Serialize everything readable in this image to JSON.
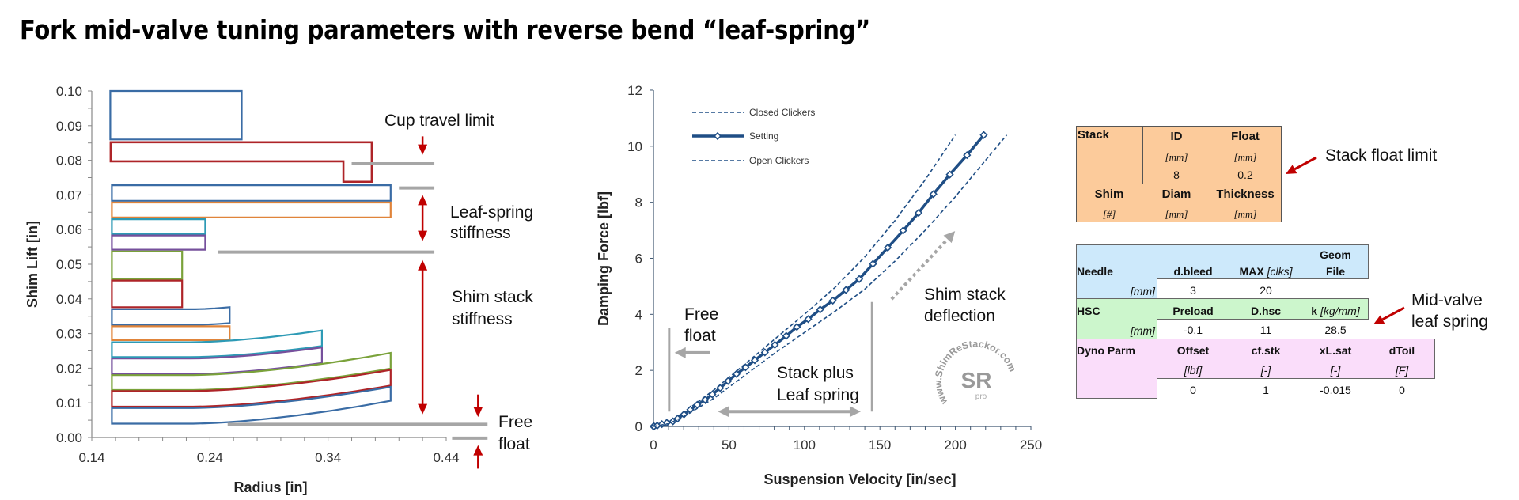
{
  "title": "Fork mid-valve tuning parameters with reverse bend “leaf-spring”",
  "colors": {
    "shim_blue": "#3A6CA5",
    "shim_red": "#AE2428",
    "shim_orange": "#E0843A",
    "shim_teal": "#2D9AB5",
    "shim_purple": "#76509C",
    "shim_green": "#7AA23A",
    "reference_grey": "#A6A6A6",
    "arrow_red": "#C00000",
    "curve_blue": "#1F4E85",
    "stack_table_bg": "#FCCB9B",
    "needle_bg": "#CDE9FB",
    "hsc_bg": "#CCF6CC",
    "dyno_bg": "#FADDFA"
  },
  "chart_data": [
    {
      "type": "shape",
      "xlabel": "Radius [in]",
      "ylabel": "Shim Lift [in]",
      "xlim": [
        0.14,
        0.44
      ],
      "ylim": [
        0,
        0.1
      ],
      "xticks": [
        "0.14",
        "0.24",
        "0.34",
        "0.44"
      ],
      "yticks": [
        "0.00",
        "0.01",
        "0.02",
        "0.03",
        "0.04",
        "0.05",
        "0.06",
        "0.07",
        "0.08",
        "0.09",
        "0.10"
      ],
      "grid": false,
      "shims": [
        {
          "color": "shim_blue",
          "r_in": 0.1557,
          "r_out": 0.2669,
          "bottom_in": 0.086,
          "top_in": 0.1,
          "bottom_out": 0.086,
          "top_out": 0.1
        },
        {
          "color": "shim_blue",
          "r_in": 0.157,
          "r_out": 0.393,
          "bottom_in": 0.0683,
          "top_in": 0.0728,
          "bottom_out": 0.0683,
          "top_out": 0.0728
        },
        {
          "color": "shim_orange",
          "r_in": 0.157,
          "r_out": 0.393,
          "bottom_in": 0.0635,
          "top_in": 0.0678,
          "bottom_out": 0.0635,
          "top_out": 0.0678
        },
        {
          "color": "shim_teal",
          "r_in": 0.157,
          "r_out": 0.236,
          "bottom_in": 0.0588,
          "top_in": 0.063,
          "bottom_out": 0.0588,
          "top_out": 0.063
        },
        {
          "color": "shim_purple",
          "r_in": 0.157,
          "r_out": 0.236,
          "bottom_in": 0.0542,
          "top_in": 0.0583,
          "bottom_out": 0.0542,
          "top_out": 0.0583
        },
        {
          "color": "shim_green",
          "r_in": 0.157,
          "r_out": 0.2165,
          "bottom_in": 0.0458,
          "top_in": 0.0537,
          "bottom_out": 0.0458,
          "top_out": 0.0537
        },
        {
          "color": "shim_red",
          "r_in": 0.157,
          "r_out": 0.2165,
          "bottom_in": 0.0376,
          "top_in": 0.0453,
          "bottom_out": 0.0376,
          "top_out": 0.0453
        },
        {
          "color": "shim_blue",
          "r_in": 0.157,
          "r_out": 0.2567,
          "bottom_in": 0.0325,
          "top_in": 0.037,
          "bottom_out": 0.033,
          "top_out": 0.0376
        },
        {
          "color": "shim_orange",
          "r_in": 0.157,
          "r_out": 0.2567,
          "bottom_in": 0.0281,
          "top_in": 0.0321,
          "bottom_out": 0.0281,
          "top_out": 0.0321
        },
        {
          "color": "shim_teal",
          "r_in": 0.157,
          "r_out": 0.3348,
          "bottom_in": 0.0232,
          "top_in": 0.0275,
          "bottom_out": 0.0264,
          "top_out": 0.0309
        },
        {
          "color": "shim_purple",
          "r_in": 0.157,
          "r_out": 0.3348,
          "bottom_in": 0.0183,
          "top_in": 0.0228,
          "bottom_out": 0.0215,
          "top_out": 0.026
        },
        {
          "color": "shim_green",
          "r_in": 0.157,
          "r_out": 0.393,
          "bottom_in": 0.0137,
          "top_in": 0.018,
          "bottom_out": 0.0199,
          "top_out": 0.0244
        },
        {
          "color": "shim_red",
          "r_in": 0.157,
          "r_out": 0.393,
          "bottom_in": 0.0089,
          "top_in": 0.0134,
          "bottom_out": 0.015,
          "top_out": 0.0195
        },
        {
          "color": "shim_blue",
          "r_in": 0.157,
          "r_out": 0.393,
          "bottom_in": 0.004,
          "top_in": 0.0085,
          "bottom_out": 0.0106,
          "top_out": 0.0146
        }
      ],
      "cup": {
        "color": "shim_red",
        "r_in": 0.156,
        "r_out": 0.377,
        "top": 0.0852,
        "bottom": 0.0797,
        "step_r": 0.353,
        "step_bottom": 0.0738
      },
      "reference_lines": [
        {
          "y": 0.079,
          "x1": 0.36,
          "x2": 0.43
        },
        {
          "y": 0.072,
          "x1": 0.4,
          "x2": 0.43
        },
        {
          "y": 0.0535,
          "x1": 0.247,
          "x2": 0.43
        },
        {
          "y": 0.0038,
          "x1": 0.255,
          "x2": 0.475
        },
        {
          "y": -0.0002,
          "x1": 0.445,
          "x2": 0.475
        }
      ],
      "arrows": [
        {
          "r": 0.42,
          "from": 0.0869,
          "to": 0.0816,
          "heads": "end"
        },
        {
          "r": 0.42,
          "from": 0.07,
          "to": 0.0567,
          "heads": "both"
        },
        {
          "r": 0.42,
          "from": 0.0512,
          "to": 0.0067,
          "heads": "both"
        },
        {
          "r": 0.467,
          "from": 0.0124,
          "to": 0.0059,
          "heads": "end"
        },
        {
          "r": 0.467,
          "from": -0.009,
          "to": -0.0022,
          "heads": "end"
        }
      ],
      "annotations": {
        "cup_travel_limit": "Cup travel limit",
        "leaf_spring_1": "Leaf-spring",
        "leaf_spring_2": "stiffness",
        "shim_stack_1": "Shim stack",
        "shim_stack_2": "stiffness",
        "free_float_1": "Free",
        "free_float_2": "float"
      }
    },
    {
      "type": "line",
      "xlabel": "Suspension Velocity [in/sec]",
      "ylabel": "Damping Force [lbf]",
      "xlim": [
        0,
        250
      ],
      "ylim": [
        0,
        12
      ],
      "xticks": [
        "0",
        "50",
        "100",
        "150",
        "200",
        "250"
      ],
      "yticks": [
        "0",
        "2",
        "4",
        "6",
        "8",
        "10",
        "12"
      ],
      "grid": false,
      "legend_position": "top-left",
      "series": [
        {
          "name": "Closed Clickers",
          "style": "dashed",
          "x": [
            0,
            10,
            20,
            40,
            60,
            80,
            100,
            120,
            140,
            160,
            180,
            200
          ],
          "y": [
            0,
            0.15,
            0.5,
            1.3,
            2.2,
            3.1,
            4.0,
            4.95,
            6.05,
            7.35,
            8.8,
            10.4
          ]
        },
        {
          "name": "Setting",
          "style": "solid-markers",
          "x": [
            0,
            0.4,
            2.5,
            5.6,
            8.8,
            12.9,
            16,
            20.2,
            24.4,
            29,
            34.2,
            39,
            44.2,
            49.4,
            55,
            61,
            67.1,
            73.8,
            80.4,
            87.9,
            95,
            102.5,
            110.4,
            118.8,
            127.5,
            136.3,
            145.4,
            155.2,
            165.4,
            175.6,
            185.4,
            196.3,
            207.7,
            218.8
          ],
          "y": [
            0,
            0,
            0.03,
            0.08,
            0.13,
            0.18,
            0.28,
            0.43,
            0.6,
            0.77,
            0.95,
            1.14,
            1.37,
            1.62,
            1.87,
            2.11,
            2.36,
            2.64,
            2.91,
            3.23,
            3.55,
            3.83,
            4.17,
            4.49,
            4.87,
            5.26,
            5.8,
            6.38,
            6.99,
            7.62,
            8.29,
            8.99,
            9.68,
            10.4
          ]
        },
        {
          "name": "Open Clickers",
          "style": "dashed",
          "x": [
            0,
            10,
            20,
            40,
            60,
            80,
            100,
            120,
            140,
            160,
            180,
            200,
            220,
            234
          ],
          "y": [
            0,
            0.1,
            0.35,
            1.0,
            1.8,
            2.6,
            3.35,
            4.1,
            4.9,
            5.9,
            7.0,
            8.2,
            9.5,
            10.4
          ]
        }
      ],
      "annotations": {
        "free_float_1": "Free",
        "free_float_2": "float",
        "stack_plus_1": "Stack plus",
        "stack_plus_2": "Leaf spring",
        "shim_stack_1": "Shim stack",
        "shim_stack_2": "deflection"
      },
      "watermark": {
        "ring_text": "www.ShimReStackor.com",
        "logo": "SR",
        "sub": "pro"
      }
    }
  ],
  "stack_table": {
    "label": "Stack",
    "columns": [
      {
        "name": "ID",
        "unit": "[mm]",
        "value": "8"
      },
      {
        "name": "Float",
        "unit": "[mm]",
        "value": "0.2"
      }
    ],
    "shim_header": [
      {
        "name": "Shim",
        "unit": "[#]"
      },
      {
        "name": "Diam",
        "unit": "[mm]"
      },
      {
        "name": "Thickness",
        "unit": "[mm]"
      }
    ]
  },
  "valve_table": {
    "needle": {
      "label": "Needle",
      "unit": "[mm]",
      "columns": [
        {
          "name": "d.bleed",
          "value": "3"
        },
        {
          "name": "MAX",
          "unit": "[clks]",
          "value": "20"
        },
        {
          "name_1": "Geom",
          "name_2": "File",
          "value": ""
        }
      ]
    },
    "hsc": {
      "label": "HSC",
      "unit": "[mm]",
      "columns": [
        {
          "name": "Preload",
          "value": "-0.1"
        },
        {
          "name": "D.hsc",
          "value": "11"
        },
        {
          "name": "k",
          "unit": "[kg/mm]",
          "value": "28.5"
        }
      ]
    },
    "dyno": {
      "label": "Dyno Parm",
      "columns": [
        {
          "name": "Offset",
          "unit": "[lbf]",
          "value": "0"
        },
        {
          "name": "cf.stk",
          "unit": "[-]",
          "value": "1"
        },
        {
          "name": "xL.sat",
          "unit": "[-]",
          "value": "-0.015"
        },
        {
          "name": "dToil",
          "unit": "[F]",
          "value": "0"
        }
      ]
    }
  },
  "callouts": {
    "stack_float_limit": "Stack float limit",
    "mid_valve_1": "Mid-valve",
    "mid_valve_2": "leaf spring"
  }
}
